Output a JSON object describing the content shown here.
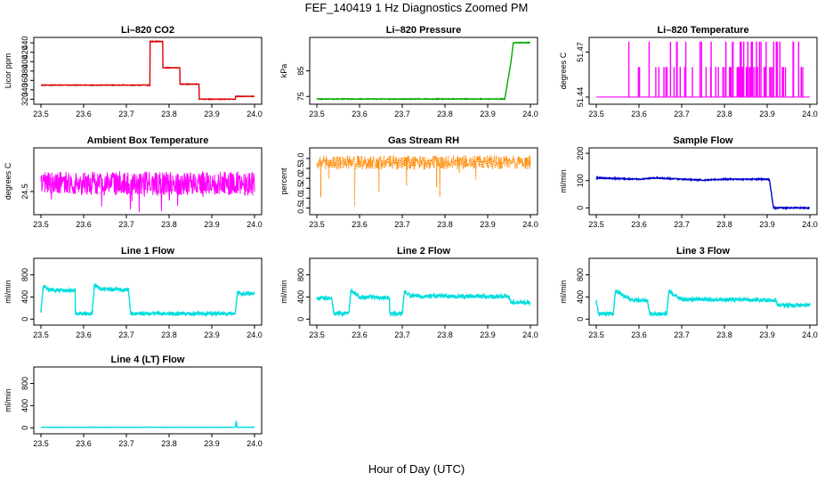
{
  "figure": {
    "title": "FEF_140419  1 Hz Diagnostics Zoomed PM",
    "xlabel": "Hour of Day (UTC)"
  },
  "chart_data": [
    {
      "type": "line",
      "title": "Li–820 CO2",
      "ylabel": "Licor ppm",
      "color": "#dd0000",
      "xlim": [
        23.5,
        24.0
      ],
      "x_ticks": [
        "23.5",
        "23.6",
        "23.7",
        "23.8",
        "23.9",
        "24.0"
      ],
      "ylim": [
        315,
        446
      ],
      "y_ticks": [
        "320",
        "340",
        "360",
        "380",
        "400",
        "420",
        "440"
      ],
      "noise": 0.6,
      "points": [
        [
          23.5,
          350
        ],
        [
          23.755,
          350
        ],
        [
          23.755,
          443
        ],
        [
          23.785,
          443
        ],
        [
          23.785,
          387
        ],
        [
          23.825,
          387
        ],
        [
          23.825,
          352
        ],
        [
          23.87,
          352
        ],
        [
          23.87,
          320
        ],
        [
          23.955,
          320
        ],
        [
          23.955,
          326
        ],
        [
          24.0,
          326
        ]
      ]
    },
    {
      "type": "line",
      "title": "Li–820 Pressure",
      "ylabel": "kPa",
      "color": "#00aa00",
      "xlim": [
        23.5,
        24.0
      ],
      "x_ticks": [
        "23.5",
        "23.6",
        "23.7",
        "23.8",
        "23.9",
        "24.0"
      ],
      "ylim": [
        73,
        97
      ],
      "y_ticks": [
        "75",
        "85"
      ],
      "noise": 0.12,
      "points": [
        [
          23.5,
          74
        ],
        [
          23.915,
          74
        ],
        [
          23.94,
          74
        ],
        [
          23.955,
          89
        ],
        [
          23.96,
          96
        ],
        [
          24.0,
          96
        ]
      ]
    },
    {
      "type": "line",
      "title": "Li–820 Temperature",
      "ylabel": "degrees C",
      "color": "#ff00ff",
      "xlim": [
        23.5,
        24.0
      ],
      "x_ticks": [
        "23.5",
        "23.6",
        "23.7",
        "23.8",
        "23.9",
        "24.0"
      ],
      "ylim": [
        51.437,
        51.478
      ],
      "y_ticks": [
        "51.44",
        "51.47"
      ],
      "render": "spikes",
      "base": 51.44,
      "spike_levels": [
        51.46,
        51.477
      ],
      "density": [
        [
          23.5,
          0.1
        ],
        [
          23.64,
          0.25
        ],
        [
          23.82,
          0.6
        ],
        [
          24.0,
          0.45
        ]
      ]
    },
    {
      "type": "line",
      "title": "Ambient Box Temperature",
      "ylabel": "degrees C",
      "color": "#ff00ff",
      "xlim": [
        23.5,
        24.0
      ],
      "x_ticks": [
        "23.5",
        "23.6",
        "23.7",
        "23.8",
        "23.9",
        "24.0"
      ],
      "ylim": [
        24.2,
        25.1
      ],
      "y_ticks": [
        "24.5"
      ],
      "render": "noise",
      "center": 24.62,
      "spread": 0.22,
      "down_spikes": 0.45
    },
    {
      "type": "line",
      "title": "Gas Stream RH",
      "ylabel": "percent",
      "color": "#ff8800",
      "xlim": [
        23.5,
        24.0
      ],
      "x_ticks": [
        "23.5",
        "23.6",
        "23.7",
        "23.8",
        "23.9",
        "24.0"
      ],
      "ylim": [
        0.3,
        3.4
      ],
      "y_ticks": [
        "0.5",
        "1.0",
        "1.5",
        "2.0",
        "2.5",
        "3.0"
      ],
      "render": "noise",
      "center": 2.8,
      "spread": 0.45,
      "down_spikes": 2.3,
      "dotted": true
    },
    {
      "type": "line",
      "title": "Sample Flow",
      "ylabel": "ml/min",
      "color": "#0000cc",
      "xlim": [
        23.5,
        24.0
      ],
      "x_ticks": [
        "23.5",
        "23.6",
        "23.7",
        "23.8",
        "23.9",
        "24.0"
      ],
      "ylim": [
        -15,
        210
      ],
      "y_ticks": [
        "0",
        "100",
        "200"
      ],
      "noise": 2,
      "points": [
        [
          23.5,
          110
        ],
        [
          23.6,
          105
        ],
        [
          23.64,
          110
        ],
        [
          23.7,
          105
        ],
        [
          23.75,
          102
        ],
        [
          23.8,
          105
        ],
        [
          23.905,
          105
        ],
        [
          23.915,
          0
        ],
        [
          24.0,
          0
        ]
      ]
    },
    {
      "type": "line",
      "title": "Line 1 Flow",
      "ylabel": "ml/min",
      "color": "#00dddd",
      "xlim": [
        23.5,
        24.0
      ],
      "x_ticks": [
        "23.5",
        "23.6",
        "23.7",
        "23.8",
        "23.9",
        "24.0"
      ],
      "ylim": [
        -60,
        1050
      ],
      "y_ticks": [
        "0",
        "400",
        "800"
      ],
      "noise": 30,
      "points": [
        [
          23.5,
          100
        ],
        [
          23.505,
          600
        ],
        [
          23.52,
          530
        ],
        [
          23.58,
          520
        ],
        [
          23.58,
          100
        ],
        [
          23.62,
          100
        ],
        [
          23.625,
          620
        ],
        [
          23.64,
          540
        ],
        [
          23.705,
          530
        ],
        [
          23.71,
          100
        ],
        [
          23.955,
          100
        ],
        [
          23.96,
          500
        ],
        [
          23.97,
          450
        ],
        [
          24.0,
          470
        ]
      ]
    },
    {
      "type": "line",
      "title": "Line 2 Flow",
      "ylabel": "ml/min",
      "color": "#00dddd",
      "xlim": [
        23.5,
        24.0
      ],
      "x_ticks": [
        "23.5",
        "23.6",
        "23.7",
        "23.8",
        "23.9",
        "24.0"
      ],
      "ylim": [
        -60,
        1050
      ],
      "y_ticks": [
        "0",
        "400",
        "800"
      ],
      "noise": 35,
      "points": [
        [
          23.5,
          380
        ],
        [
          23.535,
          380
        ],
        [
          23.54,
          100
        ],
        [
          23.575,
          100
        ],
        [
          23.58,
          520
        ],
        [
          23.6,
          400
        ],
        [
          23.67,
          390
        ],
        [
          23.67,
          100
        ],
        [
          23.7,
          100
        ],
        [
          23.705,
          500
        ],
        [
          23.72,
          420
        ],
        [
          23.95,
          410
        ],
        [
          23.955,
          300
        ],
        [
          24.0,
          300
        ]
      ]
    },
    {
      "type": "line",
      "title": "Line 3 Flow",
      "ylabel": "ml/min",
      "color": "#00dddd",
      "xlim": [
        23.5,
        24.0
      ],
      "x_ticks": [
        "23.5",
        "23.6",
        "23.7",
        "23.8",
        "23.9",
        "24.0"
      ],
      "ylim": [
        -60,
        1050
      ],
      "y_ticks": [
        "0",
        "400",
        "800"
      ],
      "noise": 32,
      "points": [
        [
          23.5,
          320
        ],
        [
          23.505,
          100
        ],
        [
          23.54,
          100
        ],
        [
          23.545,
          520
        ],
        [
          23.58,
          350
        ],
        [
          23.62,
          330
        ],
        [
          23.625,
          100
        ],
        [
          23.665,
          100
        ],
        [
          23.67,
          500
        ],
        [
          23.7,
          360
        ],
        [
          23.92,
          340
        ],
        [
          23.925,
          250
        ],
        [
          24.0,
          250
        ]
      ]
    },
    {
      "type": "line",
      "title": "Line 4 (LT) Flow",
      "ylabel": "ml/min",
      "color": "#00dddd",
      "xlim": [
        23.5,
        24.0
      ],
      "x_ticks": [
        "23.5",
        "23.6",
        "23.7",
        "23.8",
        "23.9",
        "24.0"
      ],
      "ylim": [
        -60,
        1050
      ],
      "y_ticks": [
        "0",
        "400",
        "800"
      ],
      "noise": 3,
      "points": [
        [
          23.5,
          10
        ],
        [
          23.955,
          10
        ],
        [
          23.957,
          130
        ],
        [
          23.959,
          10
        ],
        [
          24.0,
          10
        ]
      ]
    }
  ]
}
